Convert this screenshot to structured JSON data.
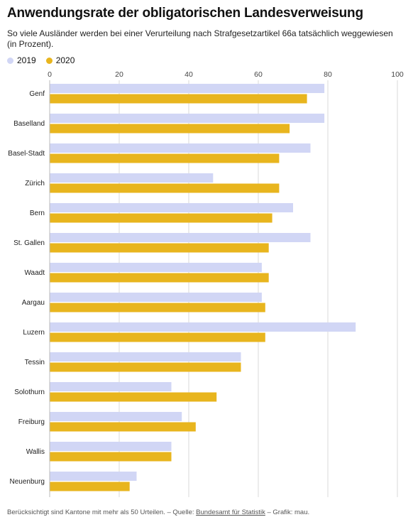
{
  "chart_data": {
    "type": "bar",
    "orientation": "horizontal",
    "title": "Anwendungsrate der obligatorischen Landesverweisung",
    "subtitle": "So viele Ausländer werden bei einer Verurteilung nach Strafgesetzartikel 66a tatsächlich weggewiesen (in Prozent).",
    "categories": [
      "Genf",
      "Baselland",
      "Basel-Stadt",
      "Zürich",
      "Bern",
      "St. Gallen",
      "Waadt",
      "Aargau",
      "Luzern",
      "Tessin",
      "Solothurn",
      "Freiburg",
      "Wallis",
      "Neuenburg"
    ],
    "series": [
      {
        "name": "2019",
        "color": "#d1d6f5",
        "values": [
          79,
          79,
          75,
          47,
          70,
          75,
          61,
          61,
          88,
          55,
          35,
          38,
          35,
          25
        ]
      },
      {
        "name": "2020",
        "color": "#e8b51e",
        "values": [
          74,
          69,
          66,
          66,
          64,
          63,
          63,
          62,
          62,
          55,
          48,
          42,
          35,
          23
        ]
      }
    ],
    "xlim": [
      0,
      100
    ],
    "xticks": [
      0,
      20,
      40,
      60,
      80,
      100
    ],
    "xticks_labels": [
      "0",
      "20",
      "40",
      "60",
      "80",
      "100"
    ],
    "grid": true,
    "legend_position": "top-left"
  },
  "footer": {
    "prefix": "Berücksichtigt sind Kantone mit mehr als 50 Urteilen. – Quelle: ",
    "source_link": "Bundesamt für Statistik",
    "suffix": " – Grafik: mau."
  }
}
